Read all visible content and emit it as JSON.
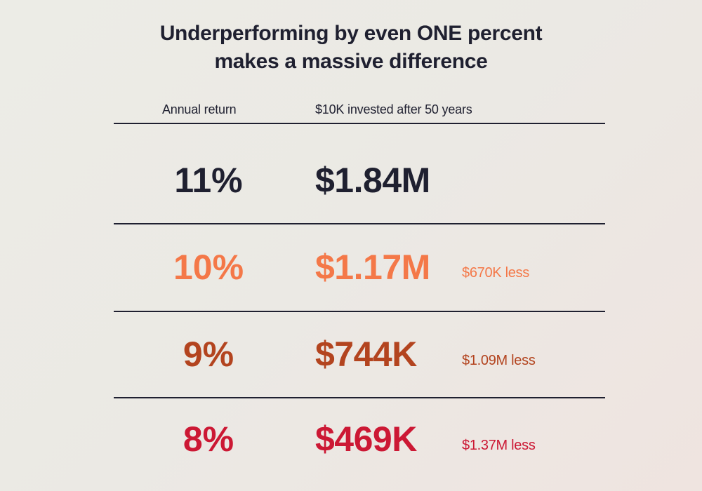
{
  "title": {
    "line1": "Underperforming by even ONE percent",
    "line2": "makes a massive difference"
  },
  "headers": {
    "return": "Annual return",
    "invested": "$10K invested after 50 years"
  },
  "rows": [
    {
      "rate": "11%",
      "amount": "$1.84M",
      "difference": "",
      "color": "#1f2030"
    },
    {
      "rate": "10%",
      "amount": "$1.17M",
      "difference": "$670K less",
      "color": "#f47848"
    },
    {
      "rate": "9%",
      "amount": "$744K",
      "difference": "$1.09M less",
      "color": "#b3441f"
    },
    {
      "rate": "8%",
      "amount": "$469K",
      "difference": "$1.37M less",
      "color": "#cc1834"
    }
  ]
}
